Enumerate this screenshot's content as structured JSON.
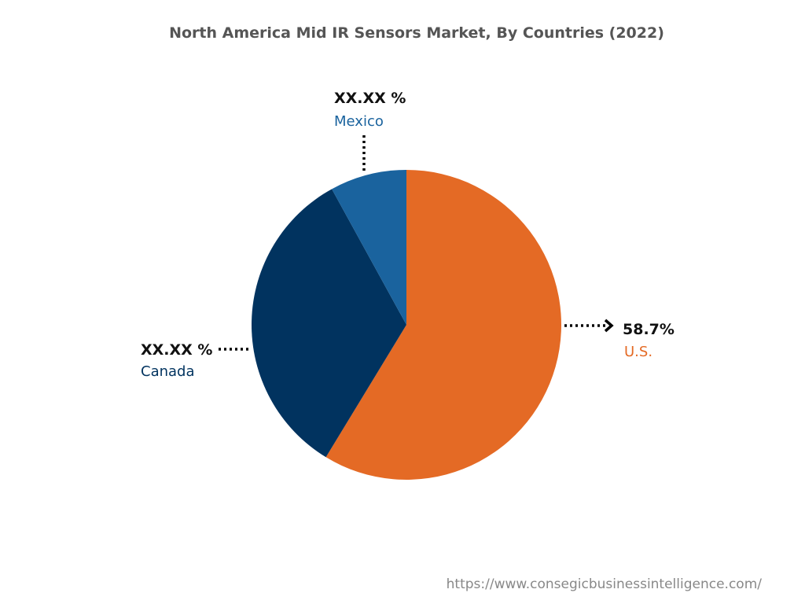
{
  "chart_data": {
    "type": "pie",
    "title": "North America Mid IR Sensors Market, By Countries (2022)",
    "start": "top",
    "direction": "clockwise",
    "slices": [
      {
        "name": "U.S.",
        "value": 58.7,
        "label": "58.7%",
        "color": "#E46A25"
      },
      {
        "name": "Canada",
        "value": 33.3,
        "label": "XX.XX %",
        "color": "#01335F"
      },
      {
        "name": "Mexico",
        "value": 8.0,
        "label": "XX.XX %",
        "color": "#1A639E"
      }
    ]
  },
  "source": "https://www.consegicbusinessintelligence.com/"
}
